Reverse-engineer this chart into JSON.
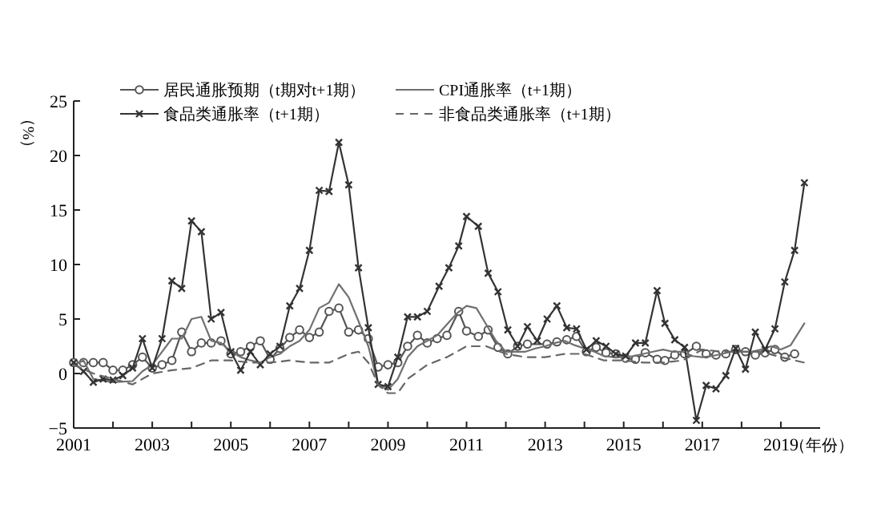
{
  "chart_data": {
    "type": "line",
    "xlabel": "（年份）",
    "ylabel": "（%）",
    "xlim": [
      2001,
      2020
    ],
    "ylim": [
      -5,
      25
    ],
    "xticks": [
      2001,
      {
        "value": 2002,
        "label": null
      },
      2003,
      {
        "value": 2004,
        "label": null
      },
      2005,
      {
        "value": 2006,
        "label": null
      },
      2007,
      {
        "value": 2008,
        "label": null
      },
      2009,
      {
        "value": 2010,
        "label": null
      },
      2011,
      {
        "value": 2012,
        "label": null
      },
      2013,
      {
        "value": 2014,
        "label": null
      },
      2015,
      {
        "value": 2016,
        "label": null
      },
      2017,
      {
        "value": 2018,
        "label": null
      },
      2019
    ],
    "yticks": [
      -5,
      0,
      5,
      10,
      15,
      20,
      25
    ],
    "grid": false,
    "legend": "top",
    "series": [
      {
        "name": "居民通胀预期（t期对t+1期）",
        "color": "#555555",
        "marker": "circle",
        "line_style": "solid",
        "x": [
          2001,
          2001.25,
          2001.5,
          2001.75,
          2002,
          2002.25,
          2002.5,
          2002.75,
          2003,
          2003.25,
          2003.5,
          2003.75,
          2004,
          2004.25,
          2004.5,
          2004.75,
          2005,
          2005.25,
          2005.5,
          2005.75,
          2006,
          2006.25,
          2006.5,
          2006.75,
          2007,
          2007.25,
          2007.5,
          2007.75,
          2008,
          2008.25,
          2008.5,
          2008.75,
          2009,
          2009.25,
          2009.5,
          2009.75,
          2010,
          2010.25,
          2010.5,
          2010.8,
          2011,
          2011.3,
          2011.55,
          2011.8,
          2012.05,
          2012.3,
          2012.55,
          2013.05,
          2013.3,
          2013.55,
          2013.8,
          2014.05,
          2014.3,
          2014.55,
          2014.8,
          2015.05,
          2015.3,
          2015.55,
          2015.85,
          2016.05,
          2016.3,
          2016.55,
          2016.85,
          2017.1,
          2017.35,
          2017.6,
          2017.85,
          2018.1,
          2018.35,
          2018.6,
          2018.85,
          2019.1,
          2019.35
        ],
        "values": [
          1.0,
          1.0,
          1.0,
          1.0,
          0.3,
          0.3,
          0.8,
          1.5,
          0.5,
          0.8,
          1.2,
          3.8,
          2.0,
          2.8,
          2.8,
          3.0,
          1.8,
          2.0,
          2.5,
          3.0,
          1.3,
          2.3,
          3.3,
          4.0,
          3.3,
          3.8,
          5.7,
          6.0,
          3.8,
          4.0,
          3.2,
          0.6,
          0.8,
          1.0,
          2.5,
          3.5,
          2.8,
          3.2,
          3.5,
          5.7,
          3.9,
          3.4,
          4.0,
          2.4,
          1.8,
          2.5,
          2.7,
          2.7,
          2.9,
          3.1,
          3.4,
          2.0,
          2.4,
          1.9,
          1.8,
          1.4,
          1.3,
          1.9,
          1.3,
          1.2,
          1.7,
          1.8,
          2.5,
          1.8,
          1.7,
          1.8,
          2.2,
          2.0,
          1.7,
          1.9,
          2.2,
          1.5,
          1.8
        ]
      },
      {
        "name": "CPI通胀率（t+1期）",
        "color": "#707070",
        "marker": "none",
        "line_style": "solid",
        "x": [
          2001,
          2001.25,
          2001.5,
          2002,
          2002.5,
          2002.75,
          2003,
          2003.25,
          2003.5,
          2003.75,
          2004,
          2004.25,
          2004.5,
          2004.75,
          2005,
          2005.25,
          2005.5,
          2005.75,
          2006,
          2006.25,
          2006.5,
          2006.75,
          2007,
          2007.25,
          2007.5,
          2007.75,
          2008,
          2008.25,
          2008.5,
          2008.75,
          2009,
          2009.25,
          2009.5,
          2009.75,
          2010,
          2010.25,
          2010.5,
          2010.75,
          2011,
          2011.25,
          2011.5,
          2011.75,
          2012,
          2012.25,
          2012.5,
          2012.75,
          2013,
          2013.25,
          2013.5,
          2013.75,
          2014,
          2014.25,
          2014.5,
          2014.75,
          2015,
          2015.25,
          2015.5,
          2015.75,
          2016,
          2016.25,
          2016.5,
          2016.75,
          2017,
          2017.25,
          2017.5,
          2017.75,
          2018,
          2018.25,
          2018.5,
          2018.75,
          2019,
          2019.25,
          2019.6
        ],
        "values": [
          0.8,
          1.2,
          -0.5,
          -0.8,
          -0.7,
          0.2,
          0.8,
          2.0,
          3.2,
          3.2,
          5.0,
          5.2,
          3.0,
          2.8,
          2.0,
          1.5,
          1.2,
          1.0,
          1.5,
          1.8,
          2.5,
          3.0,
          4.0,
          6.0,
          6.5,
          8.2,
          7.0,
          4.8,
          2.5,
          -1.0,
          -1.5,
          -0.5,
          1.5,
          2.5,
          3.0,
          3.5,
          4.5,
          5.5,
          6.2,
          6.0,
          4.5,
          3.0,
          2.0,
          2.0,
          2.0,
          2.3,
          2.5,
          2.8,
          3.0,
          2.6,
          2.3,
          2.0,
          1.6,
          1.5,
          1.5,
          1.6,
          1.8,
          2.0,
          2.2,
          2.0,
          2.0,
          1.6,
          1.5,
          1.6,
          1.8,
          2.0,
          2.0,
          2.0,
          2.2,
          2.5,
          2.2,
          2.6,
          4.6
        ]
      },
      {
        "name": "食品类通胀率（t+1期）",
        "color": "#333333",
        "marker": "cross",
        "line_style": "solid",
        "x": [
          2001,
          2001.25,
          2001.5,
          2001.75,
          2002,
          2002.25,
          2002.5,
          2002.75,
          2003,
          2003.25,
          2003.5,
          2003.75,
          2004,
          2004.25,
          2004.5,
          2004.75,
          2005,
          2005.25,
          2005.5,
          2005.75,
          2006,
          2006.25,
          2006.5,
          2006.75,
          2007,
          2007.25,
          2007.5,
          2007.75,
          2008,
          2008.25,
          2008.5,
          2008.75,
          2009,
          2009.25,
          2009.5,
          2009.75,
          2010,
          2010.3,
          2010.55,
          2010.8,
          2011,
          2011.3,
          2011.55,
          2011.8,
          2012.05,
          2012.3,
          2012.55,
          2012.8,
          2013.05,
          2013.3,
          2013.55,
          2013.8,
          2014.05,
          2014.3,
          2014.55,
          2014.8,
          2015.05,
          2015.3,
          2015.55,
          2015.85,
          2016.05,
          2016.3,
          2016.55,
          2016.85,
          2017.1,
          2017.35,
          2017.6,
          2017.85,
          2018.1,
          2018.35,
          2018.6,
          2018.85,
          2019.1,
          2019.35,
          2019.6
        ],
        "values": [
          1.0,
          0.2,
          -0.8,
          -0.5,
          -0.6,
          -0.2,
          0.5,
          3.2,
          0.5,
          3.2,
          8.5,
          7.8,
          14.0,
          13.0,
          5.0,
          5.6,
          2.0,
          0.3,
          2.0,
          0.8,
          1.8,
          2.5,
          6.2,
          7.8,
          11.3,
          16.8,
          16.7,
          21.2,
          17.3,
          9.7,
          4.2,
          -1.0,
          -1.2,
          1.5,
          5.2,
          5.2,
          5.7,
          8.0,
          9.7,
          11.7,
          14.4,
          13.5,
          9.2,
          7.5,
          4.0,
          2.5,
          4.3,
          3.0,
          5.0,
          6.2,
          4.2,
          4.1,
          2.2,
          3.0,
          2.5,
          1.8,
          1.6,
          2.8,
          2.8,
          7.6,
          4.6,
          3.1,
          2.4,
          -4.3,
          -1.1,
          -1.4,
          -0.2,
          2.3,
          0.4,
          3.8,
          2.2,
          4.1,
          8.4,
          11.3,
          17.5
        ]
      },
      {
        "name": "非食品类通胀率（t+1期）",
        "color": "#666666",
        "marker": "none",
        "line_style": "dashed",
        "x": [
          2001,
          2001.5,
          2002,
          2002.5,
          2003,
          2003.5,
          2004,
          2004.5,
          2005,
          2005.5,
          2006,
          2006.5,
          2007,
          2007.5,
          2008,
          2008.25,
          2008.5,
          2008.75,
          2009,
          2009.25,
          2009.5,
          2010,
          2010.5,
          2011,
          2011.5,
          2012,
          2012.5,
          2013,
          2013.5,
          2014,
          2014.5,
          2015,
          2015.5,
          2016,
          2016.5,
          2017,
          2017.5,
          2018,
          2018.5,
          2019,
          2019.6
        ],
        "values": [
          0.8,
          0.0,
          -0.5,
          -1.0,
          0.0,
          0.3,
          0.5,
          1.2,
          1.2,
          1.0,
          1.0,
          1.2,
          1.0,
          1.0,
          1.8,
          2.0,
          1.0,
          -1.0,
          -1.8,
          -1.8,
          -0.5,
          0.8,
          1.5,
          2.5,
          2.5,
          1.8,
          1.5,
          1.5,
          1.8,
          1.8,
          1.2,
          1.2,
          1.0,
          1.0,
          1.2,
          2.2,
          2.0,
          2.0,
          2.0,
          1.5,
          1.0
        ]
      }
    ]
  }
}
